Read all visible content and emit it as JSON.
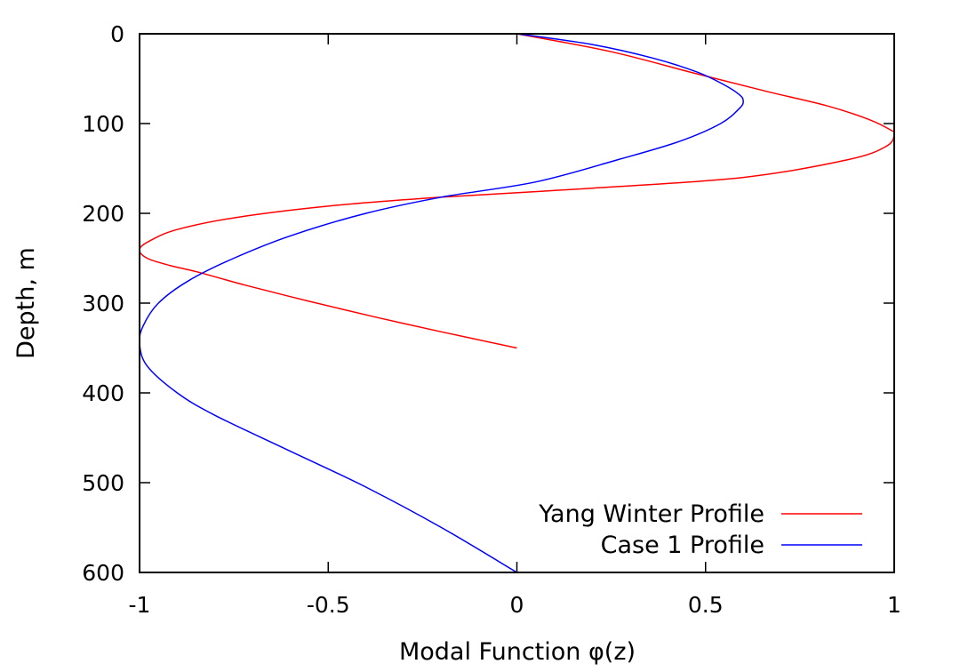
{
  "chart_data": {
    "type": "line",
    "title": "",
    "xlabel": "Modal Function φ(z)",
    "ylabel": "Depth, m",
    "xlim": [
      -1,
      1
    ],
    "ylim": [
      0,
      600
    ],
    "y_inverted": true,
    "x_ticks": [
      -1,
      -0.5,
      0,
      0.5,
      1
    ],
    "x_tick_labels": [
      "-1",
      "-0.5",
      "0",
      "0.5",
      "1"
    ],
    "y_ticks": [
      0,
      100,
      200,
      300,
      400,
      500,
      600
    ],
    "y_tick_labels": [
      "0",
      "100",
      "200",
      "300",
      "400",
      "500",
      "600"
    ],
    "grid": false,
    "legend_position": "bottom-right",
    "series": [
      {
        "name": "Yang Winter Profile",
        "color": "#ff0000",
        "points": [
          [
            0,
            0
          ],
          [
            0.25,
            20
          ],
          [
            0.48,
            45
          ],
          [
            0.67,
            65
          ],
          [
            0.82,
            80
          ],
          [
            0.93,
            95
          ],
          [
            0.99,
            107
          ],
          [
            1.0,
            112
          ],
          [
            0.98,
            125
          ],
          [
            0.88,
            140
          ],
          [
            0.6,
            160
          ],
          [
            0.2,
            172
          ],
          [
            -0.2,
            182
          ],
          [
            -0.5,
            192
          ],
          [
            -0.75,
            205
          ],
          [
            -0.9,
            218
          ],
          [
            -0.97,
            230
          ],
          [
            -1.0,
            240
          ],
          [
            -0.98,
            250
          ],
          [
            -0.92,
            258
          ],
          [
            -0.84,
            266
          ],
          [
            -0.72,
            280
          ],
          [
            -0.55,
            298
          ],
          [
            -0.37,
            316
          ],
          [
            -0.2,
            332
          ],
          [
            0,
            350
          ]
        ]
      },
      {
        "name": "Case 1 Profile",
        "color": "#0000ff",
        "points": [
          [
            0,
            0
          ],
          [
            0.2,
            12
          ],
          [
            0.36,
            27
          ],
          [
            0.48,
            43
          ],
          [
            0.55,
            57
          ],
          [
            0.59,
            68
          ],
          [
            0.6,
            75
          ],
          [
            0.59,
            83
          ],
          [
            0.54,
            100
          ],
          [
            0.43,
            120
          ],
          [
            0.27,
            140
          ],
          [
            0.05,
            165
          ],
          [
            -0.2,
            182
          ],
          [
            -0.4,
            200
          ],
          [
            -0.6,
            225
          ],
          [
            -0.75,
            250
          ],
          [
            -0.87,
            275
          ],
          [
            -0.95,
            300
          ],
          [
            -0.99,
            325
          ],
          [
            -1.0,
            345
          ],
          [
            -0.98,
            370
          ],
          [
            -0.9,
            400
          ],
          [
            -0.8,
            425
          ],
          [
            -0.6,
            465
          ],
          [
            -0.4,
            505
          ],
          [
            -0.2,
            550
          ],
          [
            0,
            600
          ]
        ]
      }
    ]
  }
}
